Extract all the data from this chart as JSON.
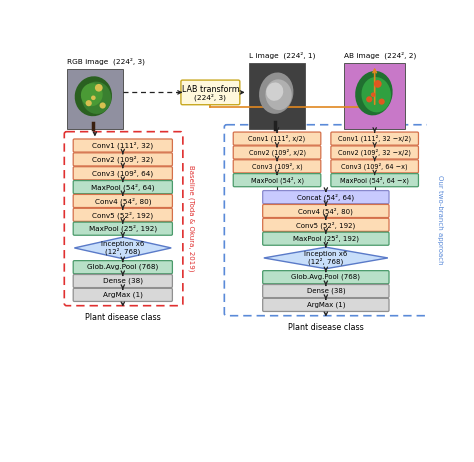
{
  "fig_width": 4.74,
  "fig_height": 4.62,
  "colors": {
    "conv_fill": "#FDDCB5",
    "conv_edge": "#D4704A",
    "maxpool_fill": "#B8E0C8",
    "maxpool_edge": "#4A9A6A",
    "inception_fill": "#C8DEFA",
    "inception_edge": "#5A7AC8",
    "dense_fill": "#D8D8D8",
    "dense_edge": "#909090",
    "argmax_fill": "#D8D8D8",
    "argmax_edge": "#909090",
    "concat_fill": "#C8CAFE",
    "concat_edge": "#8888CC",
    "lab_fill": "#FFF8DC",
    "lab_edge": "#C8A820",
    "baseline_box": "#E03030",
    "twobranch_box": "#5A8AD8",
    "arrow_color": "#222222",
    "orange_arrow": "#E08820"
  },
  "baseline_boxes": [
    {
      "label": "Conv1 (111², 32)",
      "type": "conv"
    },
    {
      "label": "Conv2 (109², 32)",
      "type": "conv"
    },
    {
      "label": "Conv3 (109², 64)",
      "type": "conv"
    },
    {
      "label": "MaxPool (54², 64)",
      "type": "maxpool"
    },
    {
      "label": "Conv4 (54², 80)",
      "type": "conv"
    },
    {
      "label": "Conv5 (52², 192)",
      "type": "conv"
    },
    {
      "label": "MaxPool (25², 192)",
      "type": "maxpool"
    },
    {
      "label": "Inception x6\n(12², 768)",
      "type": "inception"
    },
    {
      "label": "Glob.Avg.Pool (768)",
      "type": "maxpool"
    },
    {
      "label": "Dense (38)",
      "type": "dense"
    },
    {
      "label": "ArgMax (1)",
      "type": "argmax"
    }
  ],
  "branch_L_boxes": [
    {
      "label": "Conv1 (111², x/2)",
      "type": "conv"
    },
    {
      "label": "Conv2 (109², x/2)",
      "type": "conv"
    },
    {
      "label": "Conv3 (109², x)",
      "type": "conv"
    },
    {
      "label": "MaxPool (54², x)",
      "type": "maxpool"
    }
  ],
  "branch_AB_boxes": [
    {
      "label": "Conv1 (111², 32 −x/2)",
      "type": "conv"
    },
    {
      "label": "Conv2 (109², 32 −x/2)",
      "type": "conv"
    },
    {
      "label": "Conv3 (109², 64 −x)",
      "type": "conv"
    },
    {
      "label": "MaxPool (54², 64 −x)",
      "type": "maxpool"
    }
  ],
  "merged_boxes": [
    {
      "label": "Concat (54², 64)",
      "type": "concat"
    },
    {
      "label": "Conv4 (54², 80)",
      "type": "conv"
    },
    {
      "label": "Conv5 (52², 192)",
      "type": "conv"
    },
    {
      "label": "MaxPool (25², 192)",
      "type": "maxpool"
    },
    {
      "label": "Inception x6\n(12², 768)",
      "type": "inception"
    },
    {
      "label": "Glob.Avg.Pool (768)",
      "type": "maxpool"
    },
    {
      "label": "Dense (38)",
      "type": "dense"
    },
    {
      "label": "ArgMax (1)",
      "type": "argmax"
    }
  ]
}
